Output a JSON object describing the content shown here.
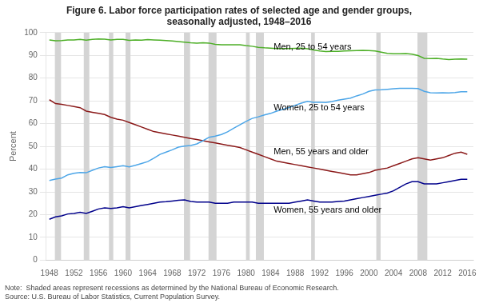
{
  "chart_data": {
    "type": "line",
    "title": [
      "Figure 6. Labor force participation rates of selected age and gender groups,",
      "seasonally adjusted, 1948–2016"
    ],
    "ylabel": "Percent",
    "note": [
      "Note:  Shaded areas represent recessions as determined by the National Bureau of Economic Research.",
      "Source: U.S. Bureau of Labor Statistics, Current Population Survey."
    ],
    "x": [
      1948,
      1949,
      1950,
      1951,
      1952,
      1953,
      1954,
      1955,
      1956,
      1957,
      1958,
      1959,
      1960,
      1961,
      1962,
      1963,
      1964,
      1965,
      1966,
      1967,
      1968,
      1969,
      1970,
      1971,
      1972,
      1973,
      1974,
      1975,
      1976,
      1977,
      1978,
      1979,
      1980,
      1981,
      1982,
      1983,
      1984,
      1985,
      1986,
      1987,
      1988,
      1989,
      1990,
      1991,
      1992,
      1993,
      1994,
      1995,
      1996,
      1997,
      1998,
      1999,
      2000,
      2001,
      2002,
      2003,
      2004,
      2005,
      2006,
      2007,
      2008,
      2009,
      2010,
      2011,
      2012,
      2013,
      2014,
      2015,
      2016
    ],
    "series": [
      {
        "name": "Men, 25 to 54 years",
        "color": "#4daf27",
        "values": [
          96.8,
          96.4,
          96.5,
          96.8,
          96.8,
          97.0,
          96.7,
          97.0,
          97.2,
          97.1,
          96.8,
          97.0,
          97.0,
          96.6,
          96.8,
          96.7,
          96.9,
          96.8,
          96.7,
          96.5,
          96.3,
          96.1,
          95.8,
          95.5,
          95.4,
          95.5,
          95.4,
          94.8,
          94.7,
          94.7,
          94.7,
          94.7,
          94.3,
          94.0,
          93.5,
          93.3,
          93.2,
          93.0,
          93.0,
          93.0,
          93.1,
          93.2,
          92.9,
          92.4,
          91.9,
          91.7,
          91.8,
          91.8,
          91.9,
          92.0,
          92.1,
          92.2,
          92.1,
          91.9,
          91.4,
          90.9,
          90.7,
          90.7,
          90.8,
          90.5,
          89.9,
          88.7,
          88.6,
          88.7,
          88.4,
          88.2,
          88.3,
          88.4,
          88.3
        ]
      },
      {
        "name": "Women, 25 to 54 years",
        "color": "#4da6e8",
        "values": [
          35.0,
          35.6,
          36.1,
          37.5,
          38.2,
          38.5,
          38.4,
          39.5,
          40.5,
          41.1,
          40.7,
          41.1,
          41.5,
          41.0,
          41.7,
          42.5,
          43.3,
          44.8,
          46.5,
          47.5,
          48.5,
          49.7,
          50.1,
          50.4,
          51.1,
          52.5,
          54.0,
          54.5,
          55.2,
          56.4,
          58.0,
          59.5,
          61.0,
          62.3,
          63.0,
          63.8,
          64.5,
          65.5,
          66.3,
          67.1,
          68.1,
          69.0,
          69.8,
          69.4,
          69.4,
          69.3,
          69.7,
          70.3,
          70.8,
          71.2,
          72.2,
          73.0,
          74.2,
          74.8,
          74.9,
          75.1,
          75.3,
          75.5,
          75.5,
          75.5,
          75.4,
          74.2,
          73.6,
          73.5,
          73.6,
          73.5,
          73.7,
          74.0,
          74.0
        ]
      },
      {
        "name": "Men, 55 years and older",
        "color": "#8b1a1a",
        "values": [
          70.5,
          68.8,
          68.5,
          68.0,
          67.5,
          67.0,
          65.5,
          65.0,
          64.5,
          64.0,
          62.8,
          62.0,
          61.5,
          60.5,
          59.5,
          58.5,
          57.5,
          56.5,
          56.0,
          55.5,
          55.0,
          54.5,
          54.0,
          53.5,
          53.0,
          52.5,
          52.0,
          51.5,
          51.0,
          50.5,
          50.0,
          49.5,
          48.5,
          47.5,
          46.5,
          45.5,
          44.5,
          43.5,
          43.0,
          42.5,
          42.0,
          41.5,
          41.0,
          40.5,
          40.0,
          39.5,
          39.0,
          38.5,
          38.0,
          37.5,
          37.5,
          38.0,
          38.5,
          39.5,
          40.0,
          40.5,
          41.5,
          42.5,
          43.5,
          44.5,
          45.0,
          44.5,
          44.0,
          44.5,
          45.0,
          46.0,
          47.0,
          47.5,
          46.5
        ]
      },
      {
        "name": "Women, 55 years and older",
        "color": "#00008b",
        "values": [
          18.0,
          19.0,
          19.5,
          20.3,
          20.5,
          21.0,
          20.5,
          21.5,
          22.5,
          23.0,
          22.7,
          23.0,
          23.5,
          23.0,
          23.5,
          24.0,
          24.5,
          25.0,
          25.5,
          25.7,
          26.0,
          26.3,
          26.5,
          25.8,
          25.5,
          25.5,
          25.5,
          25.0,
          25.0,
          25.0,
          25.5,
          25.5,
          25.5,
          25.5,
          25.0,
          25.0,
          25.0,
          25.0,
          25.0,
          25.0,
          25.5,
          26.0,
          26.5,
          26.0,
          25.5,
          25.5,
          25.5,
          25.8,
          26.0,
          26.5,
          27.0,
          27.5,
          28.0,
          28.5,
          29.0,
          29.5,
          30.5,
          32.0,
          33.5,
          34.5,
          34.5,
          33.5,
          33.5,
          33.5,
          34.0,
          34.5,
          35.0,
          35.5,
          35.5
        ]
      }
    ],
    "annotations": [
      {
        "text": "Men, 25 to 54 years",
        "x": 1984.5,
        "y": 93.5
      },
      {
        "text": "Women, 25 to 54 years",
        "x": 1984.5,
        "y": 67.0
      },
      {
        "text": "Men, 55 years and older",
        "x": 1984.5,
        "y": 47.5
      },
      {
        "text": "Women, 55 years and older",
        "x": 1984.5,
        "y": 22.0
      }
    ],
    "recessions": [
      [
        1948.9,
        1949.9
      ],
      [
        1953.6,
        1954.5
      ],
      [
        1957.7,
        1958.4
      ],
      [
        1960.4,
        1961.2
      ],
      [
        1969.9,
        1970.9
      ],
      [
        1973.9,
        1975.2
      ],
      [
        1980.0,
        1980.6
      ],
      [
        1981.6,
        1982.9
      ],
      [
        1990.6,
        1991.2
      ],
      [
        2001.2,
        2001.9
      ],
      [
        2007.9,
        2009.5
      ]
    ],
    "recession_color": "#d4d4d4",
    "xlim": [
      1947.5,
      2017
    ],
    "ylim": [
      0,
      100
    ],
    "xticks": [
      1948,
      1952,
      1956,
      1960,
      1964,
      1968,
      1972,
      1976,
      1980,
      1984,
      1988,
      1992,
      1996,
      2000,
      2004,
      2008,
      2012,
      2016
    ],
    "yticks": [
      0,
      10,
      20,
      30,
      40,
      50,
      60,
      70,
      80,
      90,
      100
    ],
    "grid": "y"
  }
}
